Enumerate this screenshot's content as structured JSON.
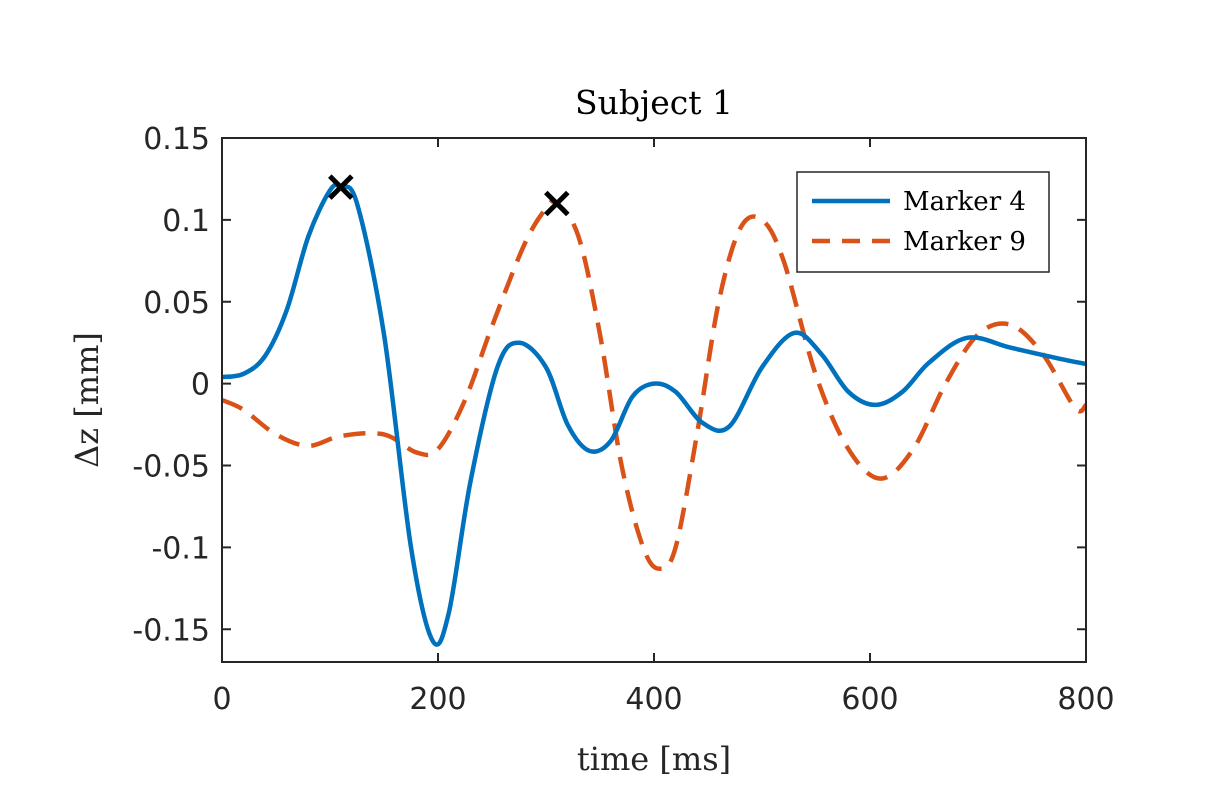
{
  "chart_data": {
    "type": "line",
    "title": "Subject 1",
    "xlabel": "time [ms]",
    "ylabel": "Δz [mm]",
    "xlim": [
      0,
      800
    ],
    "ylim": [
      -0.17,
      0.15
    ],
    "xticks": [
      0,
      200,
      400,
      600,
      800
    ],
    "xtick_labels": [
      "0",
      "200",
      "400",
      "600",
      "800"
    ],
    "yticks": [
      0.15,
      0.1,
      0.05,
      0,
      -0.05,
      -0.1,
      -0.15
    ],
    "ytick_labels": [
      "0.15",
      "0.1",
      "0.05",
      "0",
      "-0.05",
      "-0.1",
      "-0.15"
    ],
    "grid": false,
    "legend_position": "top-right",
    "series": [
      {
        "name": "Marker 4",
        "style": "solid",
        "color": "#0072BD",
        "x": [
          0,
          20,
          40,
          60,
          80,
          100,
          110,
          125,
          150,
          175,
          195,
          210,
          230,
          255,
          275,
          300,
          320,
          340,
          360,
          380,
          400,
          420,
          445,
          470,
          500,
          530,
          555,
          580,
          605,
          630,
          655,
          690,
          730,
          770,
          800
        ],
        "y": [
          0.004,
          0.006,
          0.017,
          0.045,
          0.09,
          0.118,
          0.12,
          0.11,
          0.03,
          -0.1,
          -0.157,
          -0.14,
          -0.06,
          0.01,
          0.025,
          0.01,
          -0.025,
          -0.041,
          -0.035,
          -0.008,
          0,
          -0.005,
          -0.024,
          -0.026,
          0.01,
          0.031,
          0.018,
          -0.005,
          -0.013,
          -0.005,
          0.013,
          0.028,
          0.022,
          0.016,
          0.012
        ]
      },
      {
        "name": "Marker 9",
        "style": "dashed",
        "color": "#D95319",
        "x": [
          0,
          20,
          50,
          80,
          110,
          150,
          180,
          200,
          225,
          250,
          280,
          300,
          310,
          330,
          350,
          370,
          390,
          405,
          420,
          440,
          460,
          480,
          500,
          520,
          550,
          580,
          610,
          640,
          670,
          700,
          730,
          760,
          790,
          800
        ],
        "y": [
          -0.01,
          -0.016,
          -0.031,
          -0.038,
          -0.032,
          -0.031,
          -0.042,
          -0.04,
          -0.01,
          0.035,
          0.085,
          0.107,
          0.11,
          0.09,
          0.03,
          -0.05,
          -0.1,
          -0.113,
          -0.1,
          -0.03,
          0.05,
          0.095,
          0.1,
          0.075,
          0.005,
          -0.04,
          -0.058,
          -0.04,
          0,
          0.03,
          0.036,
          0.018,
          -0.015,
          -0.013
        ]
      }
    ],
    "markers": [
      {
        "symbol": "×",
        "x": 110,
        "y": 0.12,
        "color": "#000000"
      },
      {
        "symbol": "×",
        "x": 310,
        "y": 0.11,
        "color": "#000000"
      }
    ]
  }
}
